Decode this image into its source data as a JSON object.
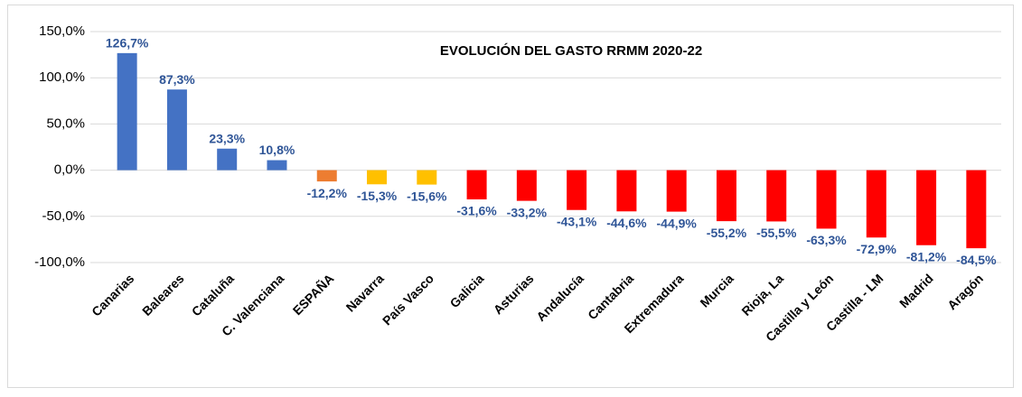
{
  "chart_data": {
    "type": "bar",
    "title": "EVOLUCIÓN DEL GASTO RRMM 2020-22",
    "categories": [
      "Canarias",
      "Baleares",
      "Cataluña",
      "C. Valenciana",
      "ESPAÑA",
      "Navarra",
      "País Vasco",
      "Galicia",
      "Asturias",
      "Andalucía",
      "Cantabria",
      "Extremadura",
      "Murcia",
      "Rioja, La",
      "Castilla y León",
      "Castilla - LM",
      "Madrid",
      "Aragón"
    ],
    "values": [
      126.7,
      87.3,
      23.3,
      10.8,
      -12.2,
      -15.3,
      -15.6,
      -31.6,
      -33.2,
      -43.1,
      -44.6,
      -44.9,
      -55.2,
      -55.5,
      -63.3,
      -72.9,
      -81.2,
      -84.5
    ],
    "value_labels": [
      "126,7%",
      "87,3%",
      "23,3%",
      "10,8%",
      "-12,2%",
      "-15,3%",
      "-15,6%",
      "-31,6%",
      "-33,2%",
      "-43,1%",
      "-44,6%",
      "-44,9%",
      "-55,2%",
      "-55,5%",
      "-63,3%",
      "-72,9%",
      "-81,2%",
      "-84,5%"
    ],
    "colors": [
      "#4472c4",
      "#4472c4",
      "#4472c4",
      "#4472c4",
      "#ed7d31",
      "#ffc000",
      "#ffc000",
      "#ff0000",
      "#ff0000",
      "#ff0000",
      "#ff0000",
      "#ff0000",
      "#ff0000",
      "#ff0000",
      "#ff0000",
      "#ff0000",
      "#ff0000",
      "#ff0000"
    ],
    "ylim": [
      -100,
      150
    ],
    "yticks": [
      {
        "value": -100,
        "label": "-100,0%"
      },
      {
        "value": -50,
        "label": "-50,0%"
      },
      {
        "value": 0,
        "label": "0,0%"
      },
      {
        "value": 50,
        "label": "50,0%"
      },
      {
        "value": 100,
        "label": "100,0%"
      },
      {
        "value": 150,
        "label": "150,0%"
      }
    ],
    "grid": true
  }
}
